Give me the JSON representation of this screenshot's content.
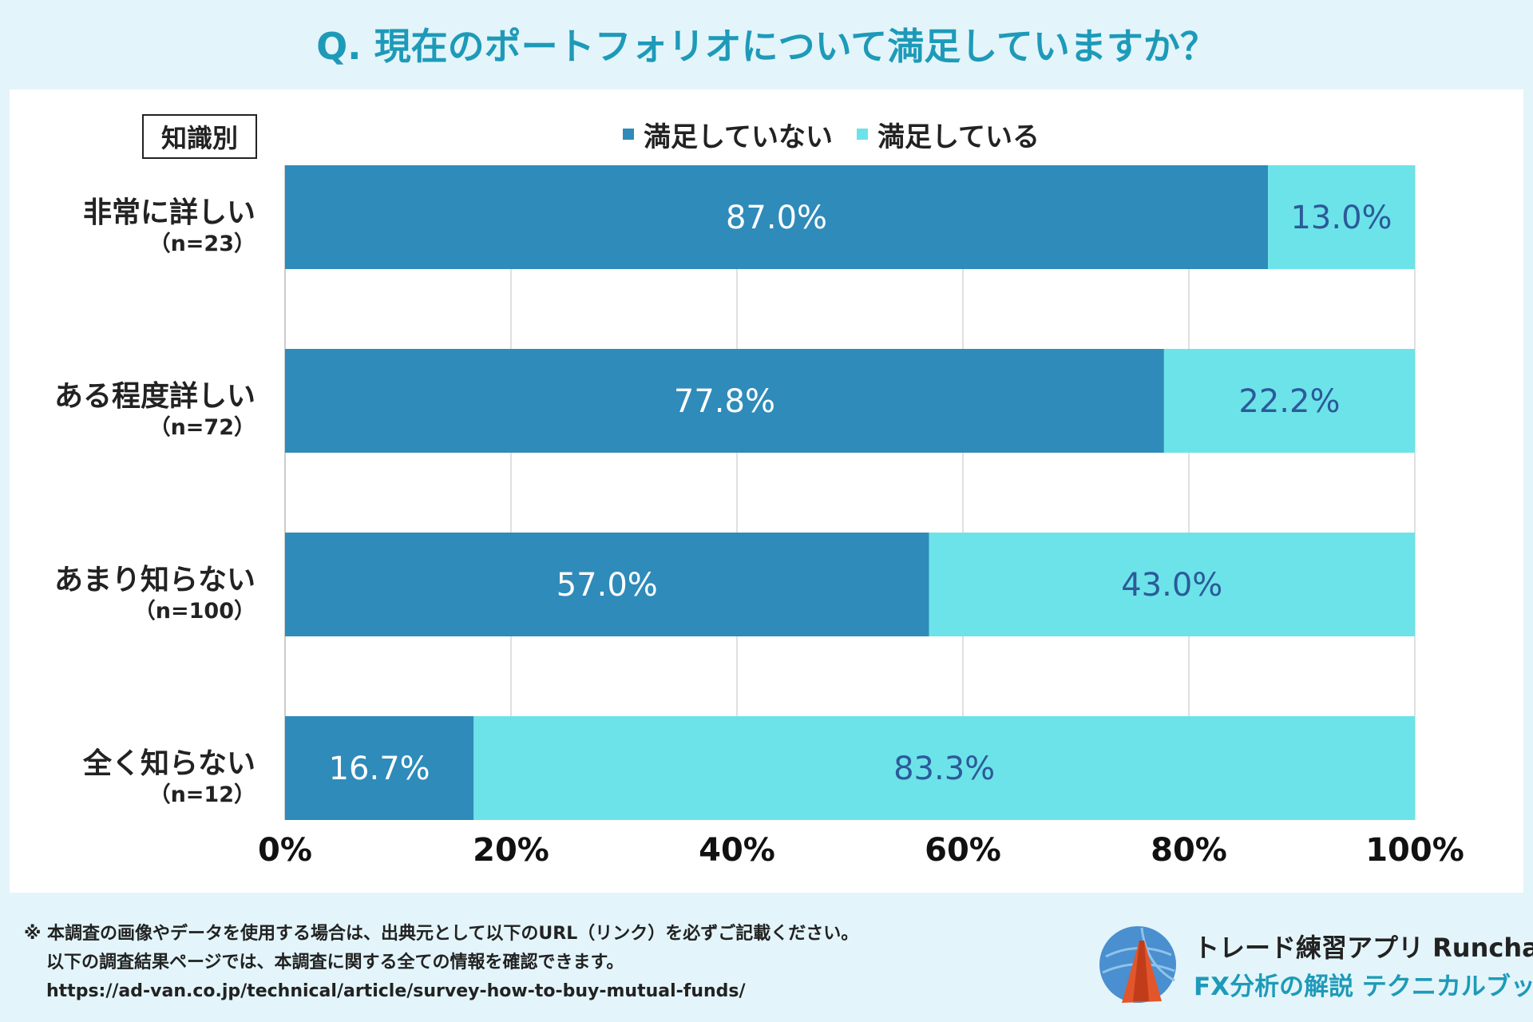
{
  "title": "Q. 現在のポートフォリオについて満足していますか？",
  "group_label": "知識別",
  "legend": [
    {
      "label": "満足していない",
      "color": "#2e8bba"
    },
    {
      "label": "満足している",
      "color": "#6ce3e8"
    }
  ],
  "chart_data": {
    "type": "bar",
    "orientation": "horizontal",
    "stacked": true,
    "title": "Q. 現在のポートフォリオについて満足していますか？",
    "categories": [
      "非常に詳しい",
      "ある程度詳しい",
      "あまり知らない",
      "全く知らない"
    ],
    "category_n": [
      "（n=23）",
      "（n=72）",
      "（n=100）",
      "（n=12）"
    ],
    "series": [
      {
        "name": "満足していない",
        "values": [
          87.0,
          77.8,
          57.0,
          16.7
        ],
        "labels": [
          "87.0%",
          "77.8%",
          "57.0%",
          "16.7%"
        ],
        "color": "#2e8bba",
        "label_color": "#ffffff"
      },
      {
        "name": "満足している",
        "values": [
          13.0,
          22.2,
          43.0,
          83.3
        ],
        "labels": [
          "13.0%",
          "22.2%",
          "43.0%",
          "83.3%"
        ],
        "color": "#6ce3e8",
        "label_color": "#2b5a9a"
      }
    ],
    "xlim": [
      0,
      100
    ],
    "x_ticks": [
      0,
      20,
      40,
      60,
      80,
      100
    ],
    "x_tick_labels": [
      "0%",
      "20%",
      "40%",
      "60%",
      "80%",
      "100%"
    ],
    "grid": true,
    "legend_position": "top"
  },
  "footer": {
    "line1": "※ 本調査の画像やデータを使用する場合は、出典元として以下のURL（リンク）を必ずご記載ください。",
    "line2": "以下の調査結果ページでは、本調査に関する全ての情報を確認できます。",
    "url": "https://ad-van.co.jp/technical/article/survey-how-to-buy-mutual-funds/"
  },
  "brand": {
    "line1": "トレード練習アプリ Runcha",
    "line2": "FX分析の解説 テクニカルブック",
    "logo_icon": "runcha-logo-icon"
  }
}
